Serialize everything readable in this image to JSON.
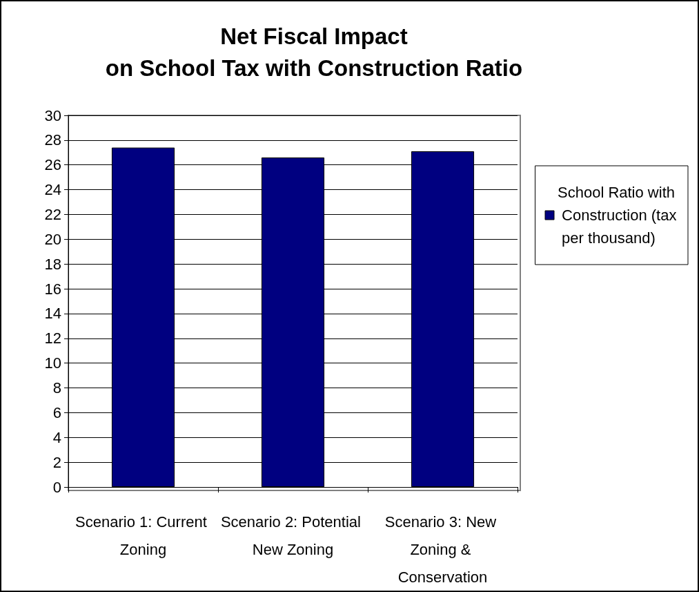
{
  "chart_data": {
    "type": "bar",
    "title": "Net Fiscal Impact\non School Tax with Construction Ratio",
    "categories": [
      "Scenario 1: Current Zoning",
      "Scenario 2: Potential New Zoning",
      "Scenario 3: New Zoning & Conservation"
    ],
    "series": [
      {
        "name": "School Ratio with Construction (tax per thousand)",
        "color": "#000080",
        "values": [
          27.4,
          26.6,
          27.1
        ]
      }
    ],
    "ylim": [
      0,
      30
    ],
    "yticks": [
      0,
      2,
      4,
      6,
      8,
      10,
      12,
      14,
      16,
      18,
      20,
      22,
      24,
      26,
      28,
      30
    ],
    "grid": "y",
    "legend": "right"
  }
}
